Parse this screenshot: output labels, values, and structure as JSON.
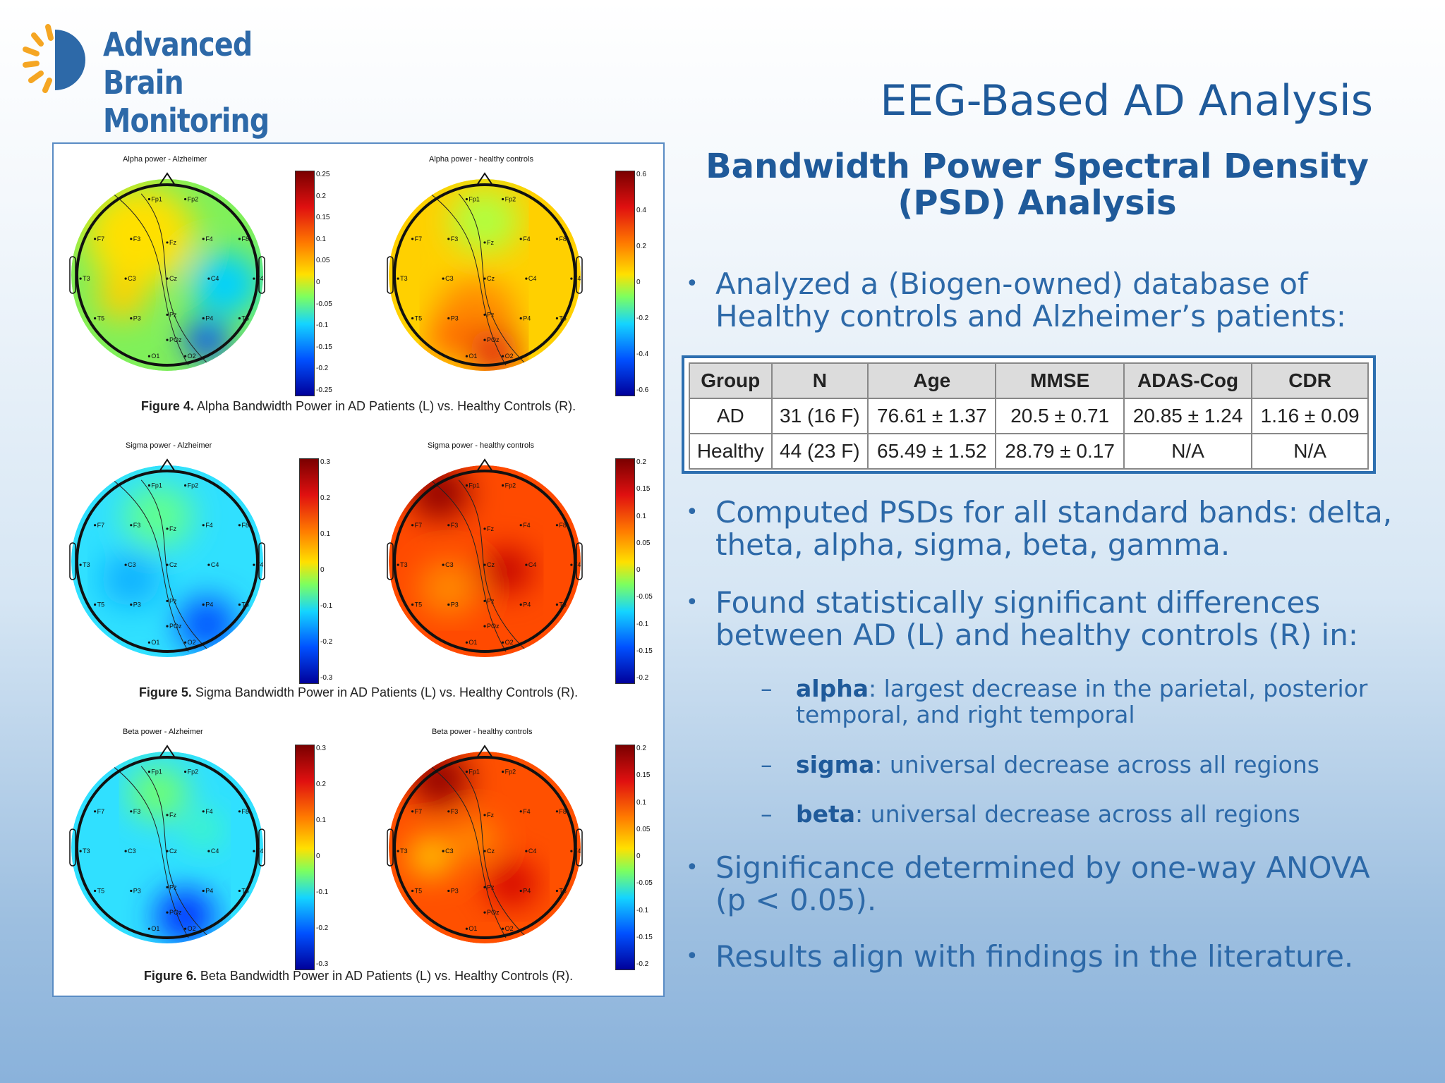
{
  "logo": {
    "line1": "Advanced",
    "line2": "Brain Monitoring"
  },
  "slide": {
    "title": "EEG-Based AD Analysis",
    "subtitle_line1": "Bandwidth Power Spectral Density",
    "subtitle_line2": "(PSD) Analysis"
  },
  "figures": [
    {
      "left_title": "Alpha power - Alzheimer",
      "right_title": "Alpha power - healthy controls",
      "caption_label": "Figure 4.",
      "caption_text": " Alpha Bandwidth Power in AD Patients (L) vs. Healthy Controls (R).",
      "left_ticks": [
        "0.25",
        "0.2",
        "0.15",
        "0.1",
        "0.05",
        "0",
        "-0.05",
        "-0.1",
        "-0.15",
        "-0.2",
        "-0.25"
      ],
      "right_ticks": [
        "0.6",
        "0.4",
        "0.2",
        "0",
        "-0.2",
        "-0.4",
        "-0.6"
      ]
    },
    {
      "left_title": "Sigma power - Alzheimer",
      "right_title": "Sigma power - healthy controls",
      "caption_label": "Figure 5.",
      "caption_text": " Sigma Bandwidth Power in AD Patients (L) vs. Healthy Controls (R).",
      "left_ticks": [
        "0.3",
        "0.2",
        "0.1",
        "0",
        "-0.1",
        "-0.2",
        "-0.3"
      ],
      "right_ticks": [
        "0.2",
        "0.15",
        "0.1",
        "0.05",
        "0",
        "-0.05",
        "-0.1",
        "-0.15",
        "-0.2"
      ]
    },
    {
      "left_title": "Beta power - Alzheimer",
      "right_title": "Beta power - healthy controls",
      "caption_label": "Figure 6.",
      "caption_text": " Beta Bandwidth Power in AD Patients (L) vs. Healthy Controls (R).",
      "left_ticks": [
        "0.3",
        "0.2",
        "0.1",
        "0",
        "-0.1",
        "-0.2",
        "-0.3"
      ],
      "right_ticks": [
        "0.2",
        "0.15",
        "0.1",
        "0.05",
        "0",
        "-0.05",
        "-0.1",
        "-0.15",
        "-0.2"
      ]
    }
  ],
  "electrodes": [
    "Fp1",
    "Fp2",
    "F7",
    "F3",
    "Fz",
    "F4",
    "F8",
    "T3",
    "C3",
    "Cz",
    "C4",
    "T4",
    "T5",
    "P3",
    "Pz",
    "P4",
    "T6",
    "POz",
    "O1",
    "O2"
  ],
  "bullets": {
    "b1": "Analyzed a (Biogen-owned) database of Healthy controls and Alzheimer’s patients:",
    "b2": "Computed PSDs for all standard bands: delta, theta, alpha, sigma, beta, gamma.",
    "b3": "Found statistically significant differences between AD (L) and healthy controls (R) in:",
    "s1_term": "alpha",
    "s1_text": ": largest decrease in the parietal, posterior temporal, and right temporal",
    "s2_term": "sigma",
    "s2_text": ": universal decrease across all regions",
    "s3_term": "beta",
    "s3_text": ": universal decrease across all regions",
    "b4": "Significance determined by one-way ANOVA (p < 0.05).",
    "b5": "Results align with findings in the literature.",
    "bullet_char": "•",
    "dash_char": "–"
  },
  "table": {
    "headers": [
      "Group",
      "N",
      "Age",
      "MMSE",
      "ADAS-Cog",
      "CDR"
    ],
    "rows": [
      [
        "AD",
        "31 (16 F)",
        "76.61 ± 1.37",
        "20.5 ± 0.71",
        "20.85 ± 1.24",
        "1.16 ± 0.09"
      ],
      [
        "Healthy",
        "44 (23 F)",
        "65.49 ± 1.52",
        "28.79 ± 0.17",
        "N/A",
        "N/A"
      ]
    ]
  },
  "colors": {
    "title": "#1f5a9a",
    "text": "#2d69a8",
    "table_border": "#2d6fb0",
    "logo_orange": "#f5a623"
  }
}
